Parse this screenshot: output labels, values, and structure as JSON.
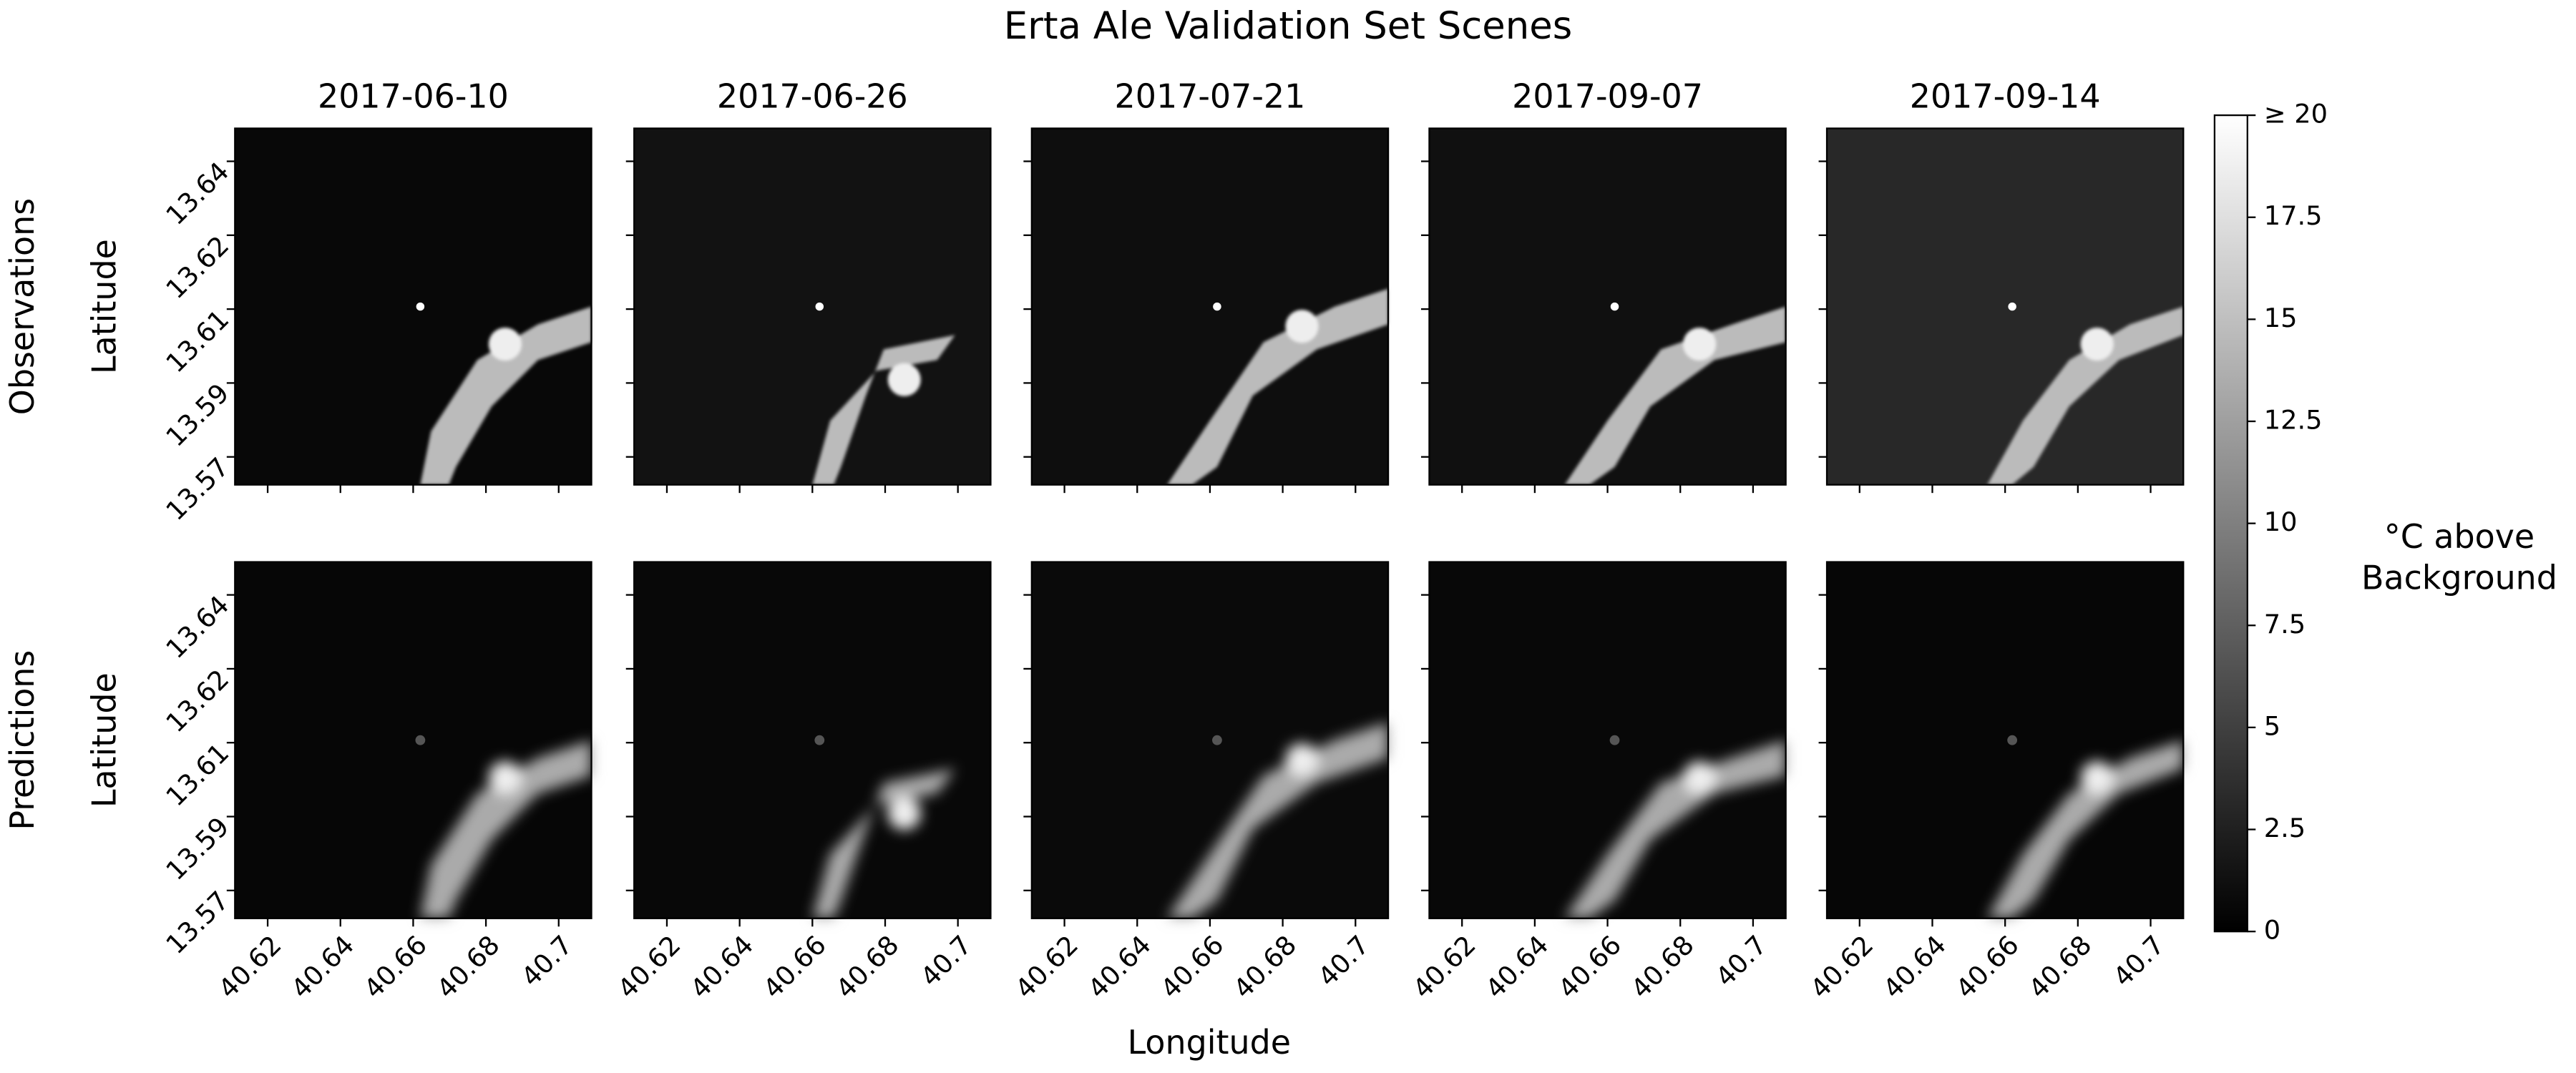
{
  "chart_data": {
    "type": "image_grid",
    "title": "Erta Ale Validation Set Scenes",
    "columns": [
      "2017-06-10",
      "2017-06-26",
      "2017-07-21",
      "2017-09-07",
      "2017-09-14"
    ],
    "rows": [
      "Observations",
      "Predictions"
    ],
    "xlabel": "Longitude",
    "ylabel": "Latitude",
    "xlim": [
      40.611,
      40.709
    ],
    "xticks": [
      40.62,
      40.64,
      40.66,
      40.68,
      40.7
    ],
    "ylim": [
      13.5659,
      13.6503
    ],
    "yticks": [
      {
        "value": 13.5725,
        "label": "13.57"
      },
      {
        "value": 13.59,
        "label": "13.59"
      },
      {
        "value": 13.6075,
        "label": "13.61"
      },
      {
        "value": 13.625,
        "label": "13.62"
      },
      {
        "value": 13.6425,
        "label": "13.64"
      }
    ],
    "colorbar": {
      "label": [
        "°C above",
        "Background"
      ],
      "lim": [
        0,
        20
      ],
      "ticks": [
        0,
        2.5,
        5,
        7.5,
        10,
        12.5,
        15,
        17.5,
        {
          "value": 20,
          "label": "≥ 20"
        }
      ]
    }
  }
}
